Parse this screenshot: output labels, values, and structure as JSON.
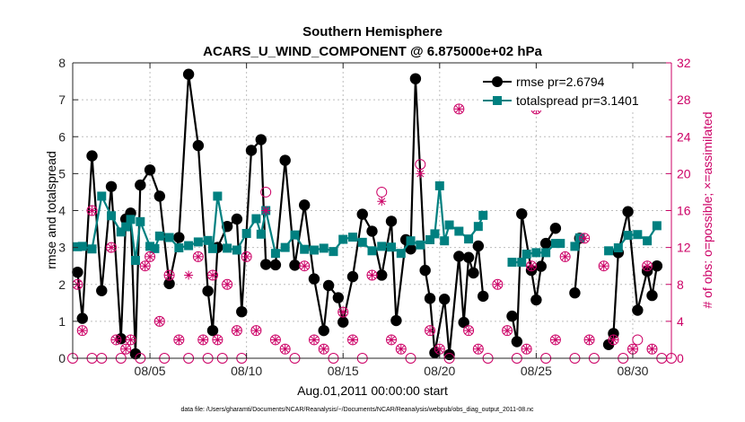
{
  "chart_data": {
    "type": "line",
    "title": "Southern Hemisphere",
    "subtitle": "ACARS_U_WIND_COMPONENT @ 6.875000e+02 hPa",
    "xlabel": "Aug.01,2011 00:00:00 start",
    "ylabel_left": "rmse and totalspread",
    "ylabel_right": "# of obs: o=possible; ×=assimilated",
    "footnote": "data file: /Users/gharamti/Documents/NCAR/Reanalysis/~/Documents/NCAR/Reanalysis/webpub/obs_diag_output_2011-08.nc",
    "xlim": [
      1.0,
      32.0
    ],
    "ylim_left": [
      0,
      8
    ],
    "ylim_right": [
      0,
      32
    ],
    "x_ticks": [
      {
        "value": 5,
        "label": "08/05"
      },
      {
        "value": 10,
        "label": "08/10"
      },
      {
        "value": 15,
        "label": "08/15"
      },
      {
        "value": 20,
        "label": "08/20"
      },
      {
        "value": 25,
        "label": "08/25"
      },
      {
        "value": 30,
        "label": "08/30"
      }
    ],
    "y_ticks_left": [
      "0",
      "1",
      "2",
      "3",
      "4",
      "5",
      "6",
      "7",
      "8"
    ],
    "y_ticks_right": [
      "0",
      "4",
      "8",
      "12",
      "16",
      "20",
      "24",
      "28",
      "32"
    ],
    "colors": {
      "rmse": "#000000",
      "totalspread": "#008080",
      "obs": "#cc0066"
    },
    "series": [
      {
        "name": "rmse",
        "legend_label": "rmse pr=2.6794",
        "segments": [
          [
            [
              1.25,
              2.33
            ],
            [
              1.5,
              1.08
            ],
            [
              2.0,
              5.48
            ],
            [
              2.5,
              1.83
            ],
            [
              3.0,
              4.65
            ],
            [
              3.5,
              0.53
            ],
            [
              3.75,
              3.77
            ],
            [
              4.0,
              3.93
            ],
            [
              4.25,
              0.12
            ],
            [
              4.5,
              4.69
            ],
            [
              5.0,
              5.1
            ],
            [
              5.5,
              4.39
            ],
            [
              6.0,
              2.02
            ],
            [
              6.5,
              3.27
            ],
            [
              7.0,
              7.69
            ],
            [
              7.5,
              5.76
            ],
            [
              8.0,
              1.82
            ],
            [
              8.25,
              0.75
            ],
            [
              8.5,
              3.0
            ],
            [
              9.0,
              3.57
            ],
            [
              9.5,
              3.77
            ],
            [
              9.75,
              1.26
            ],
            [
              10.25,
              5.63
            ],
            [
              10.75,
              5.92
            ],
            [
              11.0,
              2.54
            ],
            [
              11.5,
              2.53
            ],
            [
              12.0,
              5.36
            ],
            [
              12.5,
              2.52
            ],
            [
              13.0,
              4.15
            ],
            [
              13.5,
              2.15
            ],
            [
              14.0,
              0.75
            ],
            [
              14.25,
              1.97
            ],
            [
              14.75,
              1.64
            ],
            [
              15.0,
              0.98
            ],
            [
              15.5,
              2.21
            ],
            [
              16.0,
              3.9
            ],
            [
              16.5,
              3.44
            ],
            [
              17.0,
              2.25
            ],
            [
              17.5,
              3.71
            ],
            [
              17.75,
              1.02
            ],
            [
              18.25,
              3.21
            ],
            [
              18.5,
              2.96
            ],
            [
              18.75,
              7.57
            ],
            [
              19.25,
              2.38
            ],
            [
              19.5,
              1.62
            ],
            [
              19.75,
              0.15
            ],
            [
              20.25,
              1.6
            ],
            [
              20.5,
              0.1
            ],
            [
              21.0,
              2.76
            ],
            [
              21.25,
              0.97
            ],
            [
              21.5,
              2.73
            ],
            [
              21.75,
              2.31
            ],
            [
              22.0,
              3.04
            ],
            [
              22.25,
              1.68
            ]
          ],
          [
            [
              23.75,
              1.14
            ],
            [
              24.0,
              0.45
            ],
            [
              24.25,
              3.91
            ],
            [
              24.75,
              2.38
            ],
            [
              25.0,
              1.58
            ],
            [
              25.25,
              2.49
            ],
            [
              25.5,
              3.11
            ],
            [
              26.0,
              3.52
            ]
          ],
          [
            [
              27.0,
              1.77
            ],
            [
              27.25,
              3.25
            ]
          ],
          [
            [
              28.75,
              0.37
            ],
            [
              29.0,
              0.67
            ],
            [
              29.25,
              2.86
            ],
            [
              29.75,
              3.97
            ],
            [
              30.25,
              1.3
            ],
            [
              30.75,
              2.36
            ],
            [
              31.0,
              1.7
            ],
            [
              31.25,
              2.5
            ]
          ]
        ]
      },
      {
        "name": "totalspread",
        "legend_label": "totalspread pr=3.1401",
        "segments": [
          [
            [
              1.25,
              3.02
            ],
            [
              1.5,
              3.03
            ],
            [
              2.0,
              2.96
            ],
            [
              2.5,
              4.39
            ],
            [
              3.0,
              3.86
            ],
            [
              3.5,
              3.42
            ],
            [
              3.75,
              3.56
            ],
            [
              4.0,
              3.76
            ],
            [
              4.25,
              2.65
            ],
            [
              4.5,
              3.7
            ],
            [
              5.0,
              3.03
            ],
            [
              5.25,
              2.97
            ],
            [
              5.5,
              3.31
            ],
            [
              6.0,
              3.27
            ],
            [
              6.5,
              2.99
            ],
            [
              7.0,
              3.05
            ],
            [
              7.5,
              3.15
            ],
            [
              8.0,
              3.19
            ],
            [
              8.25,
              2.97
            ],
            [
              8.5,
              4.39
            ],
            [
              9.0,
              2.98
            ],
            [
              9.5,
              2.93
            ],
            [
              10.0,
              3.38
            ],
            [
              10.5,
              3.78
            ],
            [
              10.75,
              3.36
            ],
            [
              11.0,
              4.0
            ],
            [
              11.5,
              2.84
            ],
            [
              12.0,
              3.0
            ],
            [
              12.5,
              3.34
            ],
            [
              13.0,
              2.95
            ],
            [
              13.5,
              2.93
            ],
            [
              14.0,
              2.98
            ],
            [
              14.5,
              2.89
            ],
            [
              15.0,
              3.22
            ],
            [
              15.5,
              3.28
            ],
            [
              16.0,
              3.14
            ],
            [
              16.5,
              2.91
            ],
            [
              17.0,
              3.03
            ],
            [
              17.5,
              3.01
            ],
            [
              18.0,
              2.84
            ],
            [
              18.5,
              3.18
            ],
            [
              19.0,
              3.07
            ],
            [
              19.5,
              3.21
            ],
            [
              19.75,
              3.37
            ],
            [
              20.0,
              4.67
            ],
            [
              20.25,
              3.18
            ],
            [
              20.5,
              3.61
            ],
            [
              21.0,
              3.44
            ],
            [
              21.5,
              3.23
            ],
            [
              22.0,
              3.57
            ],
            [
              22.25,
              3.87
            ]
          ],
          [
            [
              23.75,
              2.6
            ],
            [
              24.25,
              2.6
            ],
            [
              24.5,
              2.82
            ],
            [
              25.0,
              2.86
            ],
            [
              25.5,
              2.86
            ],
            [
              26.0,
              3.11
            ],
            [
              26.25,
              3.11
            ]
          ],
          [
            [
              27.0,
              3.03
            ],
            [
              27.25,
              3.26
            ]
          ],
          [
            [
              28.75,
              2.91
            ],
            [
              29.25,
              2.99
            ],
            [
              29.75,
              3.33
            ],
            [
              30.25,
              3.35
            ],
            [
              30.75,
              3.18
            ],
            [
              31.25,
              3.59
            ]
          ]
        ]
      }
    ],
    "obs_possible": [
      [
        1.0,
        0
      ],
      [
        1.25,
        8
      ],
      [
        1.5,
        3
      ],
      [
        2.0,
        0
      ],
      [
        2.0,
        16
      ],
      [
        2.5,
        0
      ],
      [
        3.0,
        12
      ],
      [
        3.25,
        2
      ],
      [
        3.5,
        0
      ],
      [
        3.75,
        1
      ],
      [
        4.0,
        2
      ],
      [
        4.5,
        0
      ],
      [
        4.75,
        10
      ],
      [
        5.0,
        11
      ],
      [
        5.5,
        4
      ],
      [
        5.75,
        0
      ],
      [
        6.0,
        9
      ],
      [
        6.5,
        2
      ],
      [
        7.0,
        0
      ],
      [
        7.5,
        11
      ],
      [
        7.75,
        2
      ],
      [
        8.0,
        0
      ],
      [
        8.25,
        9
      ],
      [
        8.5,
        2
      ],
      [
        8.75,
        0
      ],
      [
        9.0,
        8
      ],
      [
        9.5,
        3
      ],
      [
        9.75,
        0
      ],
      [
        10.0,
        11
      ],
      [
        10.5,
        3
      ],
      [
        11.0,
        18
      ],
      [
        11.5,
        2
      ],
      [
        12.0,
        1
      ],
      [
        12.5,
        0
      ],
      [
        13.0,
        10
      ],
      [
        13.5,
        2
      ],
      [
        14.0,
        1
      ],
      [
        14.5,
        0
      ],
      [
        15.0,
        5
      ],
      [
        15.5,
        2
      ],
      [
        16.0,
        0
      ],
      [
        16.5,
        9
      ],
      [
        17.0,
        18
      ],
      [
        17.5,
        2
      ],
      [
        18.0,
        1
      ],
      [
        18.5,
        0
      ],
      [
        19.0,
        21
      ],
      [
        19.5,
        3
      ],
      [
        20.0,
        1
      ],
      [
        20.5,
        0
      ],
      [
        21.0,
        27
      ],
      [
        21.5,
        3
      ],
      [
        22.0,
        1
      ],
      [
        22.5,
        0
      ],
      [
        23.0,
        8
      ],
      [
        23.5,
        3
      ],
      [
        24.0,
        0
      ],
      [
        24.5,
        1
      ],
      [
        24.75,
        10
      ],
      [
        25.0,
        27
      ],
      [
        25.5,
        0
      ],
      [
        26.0,
        2
      ],
      [
        26.5,
        11
      ],
      [
        27.0,
        0
      ],
      [
        27.5,
        13
      ],
      [
        27.75,
        2
      ],
      [
        28.0,
        0
      ],
      [
        28.5,
        10
      ],
      [
        29.0,
        2
      ],
      [
        29.5,
        0
      ],
      [
        30.0,
        1
      ],
      [
        30.25,
        2
      ],
      [
        30.75,
        10
      ],
      [
        31.0,
        1
      ],
      [
        31.5,
        0
      ],
      [
        32.0,
        0
      ]
    ],
    "obs_assimilated": [
      [
        1.25,
        8
      ],
      [
        1.5,
        3
      ],
      [
        2.0,
        16
      ],
      [
        3.0,
        12
      ],
      [
        3.25,
        2
      ],
      [
        3.75,
        1
      ],
      [
        4.0,
        2
      ],
      [
        4.75,
        10
      ],
      [
        5.0,
        11
      ],
      [
        5.5,
        4
      ],
      [
        6.0,
        9
      ],
      [
        6.5,
        2
      ],
      [
        7.0,
        9
      ],
      [
        7.5,
        11
      ],
      [
        7.75,
        2
      ],
      [
        8.25,
        9
      ],
      [
        8.5,
        2
      ],
      [
        9.0,
        8
      ],
      [
        9.5,
        3
      ],
      [
        10.0,
        11
      ],
      [
        10.5,
        3
      ],
      [
        11.0,
        16
      ],
      [
        11.5,
        2
      ],
      [
        12.0,
        1
      ],
      [
        13.0,
        10
      ],
      [
        13.5,
        2
      ],
      [
        14.0,
        1
      ],
      [
        15.0,
        5
      ],
      [
        15.5,
        2
      ],
      [
        16.5,
        9
      ],
      [
        17.0,
        17
      ],
      [
        17.5,
        2
      ],
      [
        18.0,
        1
      ],
      [
        19.0,
        20
      ],
      [
        19.5,
        3
      ],
      [
        20.0,
        1
      ],
      [
        21.0,
        27
      ],
      [
        21.5,
        3
      ],
      [
        22.0,
        1
      ],
      [
        23.0,
        8
      ],
      [
        23.5,
        3
      ],
      [
        24.5,
        1
      ],
      [
        24.75,
        10
      ],
      [
        25.0,
        27
      ],
      [
        26.0,
        2
      ],
      [
        26.5,
        11
      ],
      [
        27.5,
        13
      ],
      [
        27.75,
        2
      ],
      [
        28.5,
        10
      ],
      [
        29.0,
        2
      ],
      [
        30.0,
        1
      ],
      [
        30.75,
        10
      ],
      [
        31.0,
        1
      ]
    ]
  }
}
